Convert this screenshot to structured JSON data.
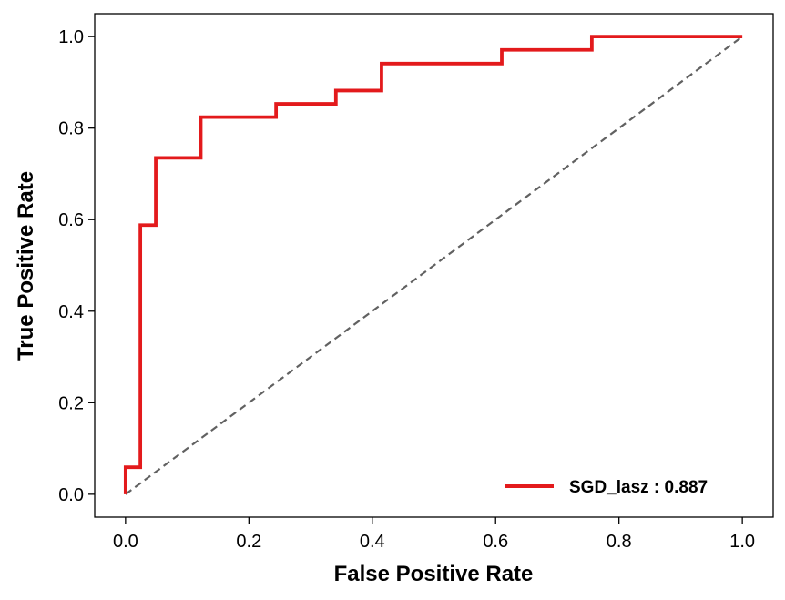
{
  "chart_data": {
    "type": "line",
    "xlabel": "False Positive Rate",
    "ylabel": "True Positive Rate",
    "xlim": [
      -0.05,
      1.05
    ],
    "ylim": [
      -0.05,
      1.05
    ],
    "xticks": [
      0.0,
      0.2,
      0.4,
      0.6,
      0.8,
      1.0
    ],
    "yticks": [
      0.0,
      0.2,
      0.4,
      0.6,
      0.8,
      1.0
    ],
    "xtick_labels": [
      "0.0",
      "0.2",
      "0.4",
      "0.6",
      "0.8",
      "1.0"
    ],
    "ytick_labels": [
      "0.0",
      "0.2",
      "0.4",
      "0.6",
      "0.8",
      "1.0"
    ],
    "grid": false,
    "legend_position": "lower-right",
    "series": [
      {
        "name": "SGD_lasz : 0.887",
        "color": "#e31a1c",
        "style": "solid",
        "x": [
          0.0,
          0.0,
          0.024,
          0.024,
          0.049,
          0.049,
          0.122,
          0.122,
          0.244,
          0.244,
          0.341,
          0.341,
          0.415,
          0.415,
          0.61,
          0.61,
          0.756,
          0.756,
          1.0
        ],
        "y": [
          0.0,
          0.059,
          0.059,
          0.588,
          0.588,
          0.735,
          0.735,
          0.824,
          0.824,
          0.853,
          0.853,
          0.882,
          0.882,
          0.941,
          0.941,
          0.971,
          0.971,
          1.0,
          1.0
        ]
      }
    ],
    "reference_line": {
      "x": [
        0.0,
        1.0
      ],
      "y": [
        0.0,
        1.0
      ],
      "color": "#616161",
      "style": "dashed"
    }
  }
}
